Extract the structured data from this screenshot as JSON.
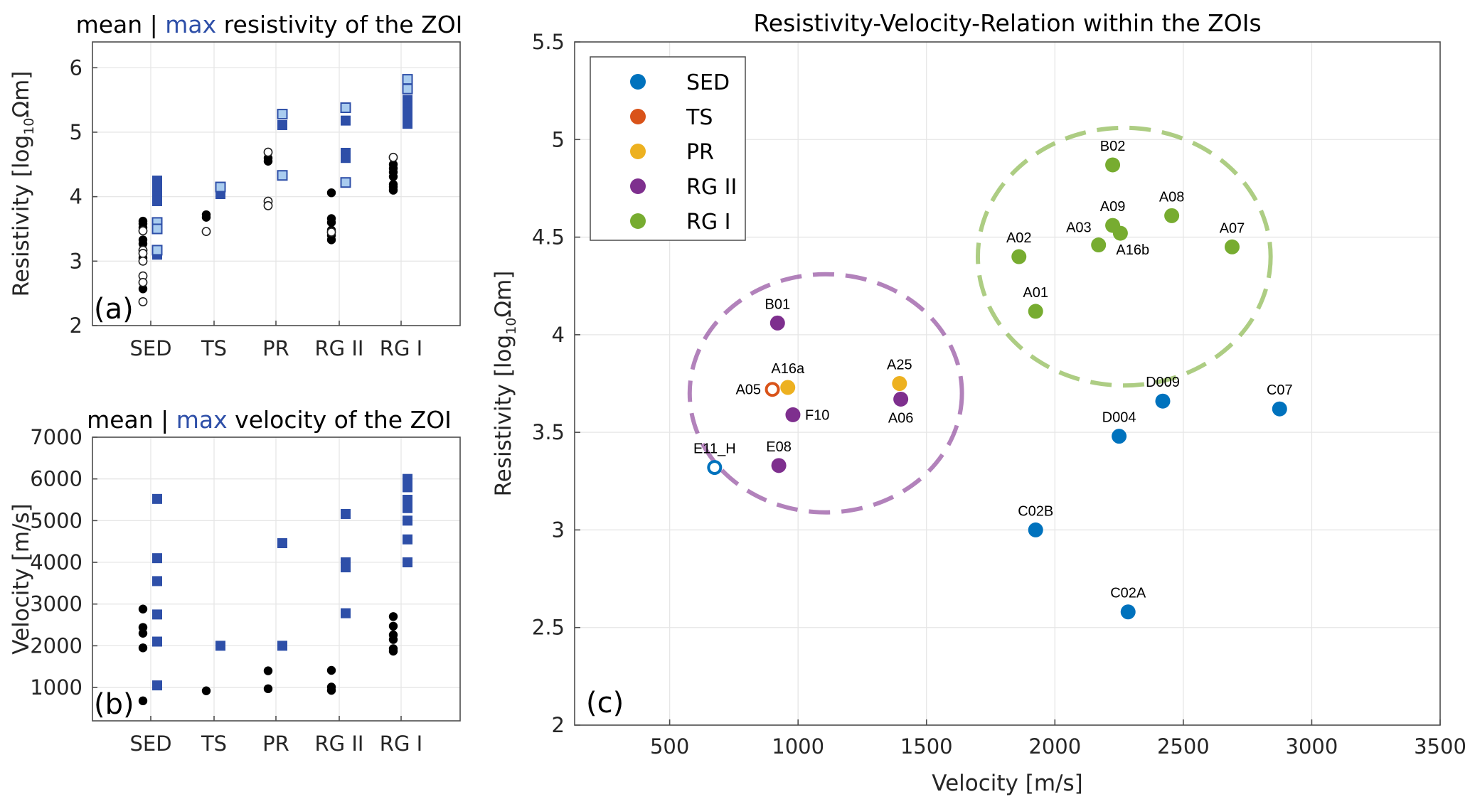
{
  "colors": {
    "SED": "#0072BD",
    "TS": "#D95319",
    "PR": "#EDB120",
    "RG II": "#7E2F8E",
    "RG I": "#77AC30",
    "mean_marker": "#000000",
    "max_marker": "#2E4FA8",
    "max_marker_light": "#A9CCEF",
    "highlight_word": "#2E4FA8"
  },
  "chart_data": [
    {
      "id": "a",
      "type": "scatter",
      "title": {
        "pre": "mean | ",
        "highlight": "max",
        "post": " resistivity of the ZOI"
      },
      "panel_label": "(a)",
      "xlabel": "",
      "ylabel": {
        "main": "Resistivity [log",
        "sub": "10",
        "tail": "Ωm]"
      },
      "categories": [
        "SED",
        "TS",
        "PR",
        "RG II",
        "RG I"
      ],
      "ylim": [
        2,
        6.4
      ],
      "yticks": [
        2,
        3,
        4,
        5,
        6
      ],
      "grid": true,
      "series": [
        {
          "name": "mean (filled)",
          "marker": "circle",
          "style": "filled",
          "points": [
            [
              "SED",
              3.62
            ],
            [
              "SED",
              3.58
            ],
            [
              "SED",
              3.52
            ],
            [
              "SED",
              3.33
            ],
            [
              "SED",
              3.27
            ],
            [
              "SED",
              3.05
            ],
            [
              "SED",
              2.57
            ],
            [
              "TS",
              3.72
            ],
            [
              "TS",
              3.68
            ],
            [
              "PR",
              4.6
            ],
            [
              "PR",
              4.55
            ],
            [
              "RG II",
              4.06
            ],
            [
              "RG II",
              3.66
            ],
            [
              "RG II",
              3.6
            ],
            [
              "RG II",
              3.48
            ],
            [
              "RG II",
              3.4
            ],
            [
              "RG II",
              3.33
            ],
            [
              "RG I",
              4.5
            ],
            [
              "RG I",
              4.44
            ],
            [
              "RG I",
              4.38
            ],
            [
              "RG I",
              4.31
            ],
            [
              "RG I",
              4.19
            ],
            [
              "RG I",
              4.15
            ],
            [
              "RG I",
              4.1
            ]
          ]
        },
        {
          "name": "mean (open)",
          "marker": "circle",
          "style": "open",
          "points": [
            [
              "SED",
              3.47
            ],
            [
              "SED",
              3.17
            ],
            [
              "SED",
              3.12
            ],
            [
              "SED",
              3.0
            ],
            [
              "SED",
              2.77
            ],
            [
              "SED",
              2.67
            ],
            [
              "SED",
              2.37
            ],
            [
              "TS",
              3.46
            ],
            [
              "PR",
              4.69
            ],
            [
              "PR",
              3.93
            ],
            [
              "PR",
              3.86
            ],
            [
              "RG II",
              3.45
            ],
            [
              "RG I",
              4.61
            ]
          ]
        },
        {
          "name": "max (filled)",
          "marker": "square",
          "style": "filled",
          "points": [
            [
              "SED",
              4.25
            ],
            [
              "SED",
              4.12
            ],
            [
              "SED",
              4.0
            ],
            [
              "SED",
              3.93
            ],
            [
              "SED",
              3.1
            ],
            [
              "TS",
              4.04
            ],
            [
              "PR",
              5.11
            ],
            [
              "RG II",
              5.18
            ],
            [
              "RG II",
              4.68
            ],
            [
              "RG II",
              4.6
            ],
            [
              "RG I",
              5.5
            ],
            [
              "RG I",
              5.4
            ],
            [
              "RG I",
              5.3
            ],
            [
              "RG I",
              5.2
            ],
            [
              "RG I",
              5.13
            ]
          ]
        },
        {
          "name": "max (light)",
          "marker": "square",
          "style": "light",
          "points": [
            [
              "SED",
              3.6
            ],
            [
              "SED",
              3.5
            ],
            [
              "SED",
              3.17
            ],
            [
              "TS",
              4.15
            ],
            [
              "PR",
              5.28
            ],
            [
              "PR",
              4.33
            ],
            [
              "RG II",
              5.38
            ],
            [
              "RG II",
              4.22
            ],
            [
              "RG I",
              5.82
            ],
            [
              "RG I",
              5.67
            ]
          ]
        }
      ]
    },
    {
      "id": "b",
      "type": "scatter",
      "title": {
        "pre": "mean | ",
        "highlight": "max",
        "post": " velocity of the ZOI"
      },
      "panel_label": "(b)",
      "xlabel": "",
      "ylabel": "Velocity [m/s]",
      "categories": [
        "SED",
        "TS",
        "PR",
        "RG II",
        "RG I"
      ],
      "ylim": [
        200,
        7000
      ],
      "yticks": [
        1000,
        2000,
        3000,
        4000,
        5000,
        6000,
        7000
      ],
      "grid": true,
      "series": [
        {
          "name": "mean",
          "marker": "circle",
          "style": "filled",
          "points": [
            [
              "SED",
              2880
            ],
            [
              "SED",
              2440
            ],
            [
              "SED",
              2300
            ],
            [
              "SED",
              1950
            ],
            [
              "SED",
              680
            ],
            [
              "TS",
              920
            ],
            [
              "PR",
              1400
            ],
            [
              "PR",
              970
            ],
            [
              "RG II",
              1410
            ],
            [
              "RG II",
              1010
            ],
            [
              "RG II",
              930
            ],
            [
              "RG I",
              2700
            ],
            [
              "RG I",
              2470
            ],
            [
              "RG I",
              2260
            ],
            [
              "RG I",
              2150
            ],
            [
              "RG I",
              1930
            ],
            [
              "RG I",
              1870
            ]
          ]
        },
        {
          "name": "max",
          "marker": "square",
          "style": "filled",
          "points": [
            [
              "SED",
              5520
            ],
            [
              "SED",
              4100
            ],
            [
              "SED",
              3550
            ],
            [
              "SED",
              2750
            ],
            [
              "SED",
              2100
            ],
            [
              "SED",
              1050
            ],
            [
              "TS",
              2000
            ],
            [
              "PR",
              4460
            ],
            [
              "PR",
              2000
            ],
            [
              "RG II",
              5160
            ],
            [
              "RG II",
              4000
            ],
            [
              "RG II",
              3880
            ],
            [
              "RG II",
              2780
            ],
            [
              "RG I",
              6000
            ],
            [
              "RG I",
              5800
            ],
            [
              "RG I",
              5500
            ],
            [
              "RG I",
              5300
            ],
            [
              "RG I",
              5000
            ],
            [
              "RG I",
              4550
            ],
            [
              "RG I",
              4000
            ]
          ]
        }
      ]
    },
    {
      "id": "c",
      "type": "scatter",
      "title": "Resistivity-Velocity-Relation within the ZOIs",
      "panel_label": "(c)",
      "xlabel": "Velocity [m/s]",
      "ylabel": {
        "main": "Resistivity [log",
        "sub": "10",
        "tail": "Ωm]"
      },
      "xlim": [
        130,
        3500
      ],
      "ylim": [
        2,
        5.5
      ],
      "xticks": [
        500,
        1000,
        1500,
        2000,
        2500,
        3000,
        3500
      ],
      "yticks": [
        2,
        2.5,
        3,
        3.5,
        4,
        4.5,
        5,
        5.5
      ],
      "ytick_labels": [
        "2",
        "2.5",
        "3",
        "3.5",
        "4",
        "4.5",
        "5",
        "5.5"
      ],
      "grid": true,
      "legend": {
        "position": "top-left",
        "entries": [
          "SED",
          "TS",
          "PR",
          "RG II",
          "RG I"
        ]
      },
      "points": [
        {
          "label": "B02",
          "x": 2225,
          "y": 4.87,
          "group": "RG I",
          "filled": true,
          "lpos": "top"
        },
        {
          "label": "A08",
          "x": 2455,
          "y": 4.61,
          "group": "RG I",
          "filled": true,
          "lpos": "top"
        },
        {
          "label": "A09",
          "x": 2225,
          "y": 4.56,
          "group": "RG I",
          "filled": true,
          "lpos": "top"
        },
        {
          "label": "A03",
          "x": 2170,
          "y": 4.46,
          "group": "RG I",
          "filled": true,
          "lpos": "upper-left"
        },
        {
          "label": "A16b",
          "x": 2255,
          "y": 4.52,
          "group": "RG I",
          "filled": true,
          "lpos": "lower-right"
        },
        {
          "label": "A07",
          "x": 2690,
          "y": 4.45,
          "group": "RG I",
          "filled": true,
          "lpos": "top"
        },
        {
          "label": "A02",
          "x": 1860,
          "y": 4.4,
          "group": "RG I",
          "filled": true,
          "lpos": "top"
        },
        {
          "label": "A01",
          "x": 1925,
          "y": 4.12,
          "group": "RG I",
          "filled": true,
          "lpos": "top"
        },
        {
          "label": "B01",
          "x": 920,
          "y": 4.06,
          "group": "RG II",
          "filled": true,
          "lpos": "top"
        },
        {
          "label": "A05",
          "x": 900,
          "y": 3.72,
          "group": "TS",
          "filled": false,
          "lpos": "left"
        },
        {
          "label": "A16a",
          "x": 960,
          "y": 3.73,
          "group": "PR",
          "filled": true,
          "lpos": "top"
        },
        {
          "label": "F10",
          "x": 980,
          "y": 3.59,
          "group": "RG II",
          "filled": true,
          "lpos": "right"
        },
        {
          "label": "A25",
          "x": 1395,
          "y": 3.75,
          "group": "PR",
          "filled": true,
          "lpos": "top"
        },
        {
          "label": "A06",
          "x": 1400,
          "y": 3.67,
          "group": "RG II",
          "filled": true,
          "lpos": "bottom"
        },
        {
          "label": "E08",
          "x": 925,
          "y": 3.33,
          "group": "RG II",
          "filled": true,
          "lpos": "top"
        },
        {
          "label": "E11_H",
          "x": 675,
          "y": 3.32,
          "group": "SED",
          "filled": false,
          "lpos": "top"
        },
        {
          "label": "D009",
          "x": 2420,
          "y": 3.66,
          "group": "SED",
          "filled": true,
          "lpos": "top"
        },
        {
          "label": "C07",
          "x": 2875,
          "y": 3.62,
          "group": "SED",
          "filled": true,
          "lpos": "top"
        },
        {
          "label": "D004",
          "x": 2250,
          "y": 3.48,
          "group": "SED",
          "filled": true,
          "lpos": "top"
        },
        {
          "label": "C02B",
          "x": 1925,
          "y": 3.0,
          "group": "SED",
          "filled": true,
          "lpos": "top"
        },
        {
          "label": "C02A",
          "x": 2285,
          "y": 2.58,
          "group": "SED",
          "filled": true,
          "lpos": "top"
        }
      ],
      "ellipses": [
        {
          "group": "RG II",
          "cx": 1108,
          "cy": 3.7,
          "rx": 530,
          "ry": 0.61
        },
        {
          "group": "RG I",
          "cx": 2270,
          "cy": 4.4,
          "rx": 570,
          "ry": 0.66
        }
      ]
    }
  ]
}
